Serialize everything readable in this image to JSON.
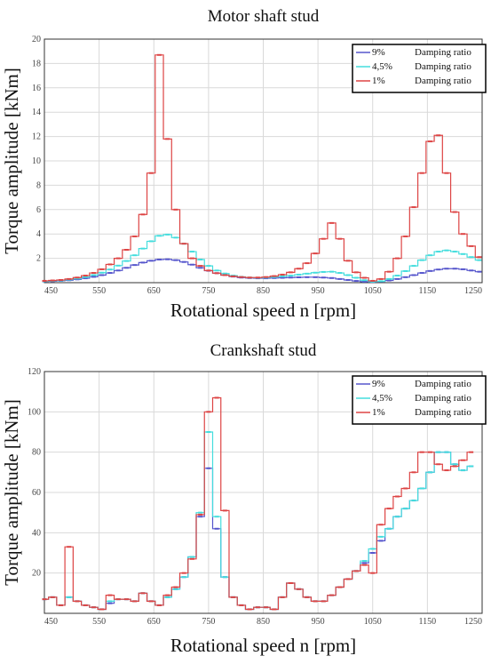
{
  "chart_data": [
    {
      "type": "line",
      "title": "Motor shaft stud",
      "xlabel": "Rotational speed n [rpm]",
      "ylabel": "Torque amplitude [kNm]",
      "xlim": [
        450,
        1250
      ],
      "ylim": [
        0,
        20
      ],
      "xticks": [
        "450",
        "550",
        "650",
        "750",
        "850",
        "950",
        "1050",
        "1150",
        "1250"
      ],
      "yticks": [
        "2",
        "4",
        "6",
        "8",
        "10",
        "12",
        "14",
        "16",
        "18",
        "20"
      ],
      "grid": true,
      "legend_position": "top-right",
      "x": [
        450,
        465,
        480,
        495,
        510,
        525,
        540,
        555,
        570,
        585,
        600,
        615,
        630,
        645,
        660,
        675,
        690,
        705,
        720,
        735,
        750,
        765,
        780,
        795,
        810,
        825,
        840,
        855,
        870,
        885,
        900,
        915,
        930,
        945,
        960,
        975,
        990,
        1005,
        1020,
        1035,
        1050,
        1065,
        1080,
        1095,
        1110,
        1125,
        1140,
        1155,
        1170,
        1185,
        1200,
        1215,
        1230,
        1245
      ],
      "series": [
        {
          "name": "9%",
          "label": "Damping ratio",
          "color": "#5555cc",
          "values": [
            0.1,
            0.12,
            0.15,
            0.2,
            0.27,
            0.36,
            0.48,
            0.62,
            0.8,
            1.0,
            1.22,
            1.45,
            1.65,
            1.8,
            1.9,
            1.92,
            1.85,
            1.7,
            1.48,
            1.22,
            0.98,
            0.78,
            0.62,
            0.5,
            0.42,
            0.38,
            0.36,
            0.36,
            0.38,
            0.4,
            0.42,
            0.44,
            0.45,
            0.45,
            0.42,
            0.38,
            0.3,
            0.22,
            0.14,
            0.08,
            0.06,
            0.1,
            0.18,
            0.3,
            0.45,
            0.62,
            0.8,
            0.96,
            1.08,
            1.15,
            1.15,
            1.1,
            1.0,
            0.9
          ]
        },
        {
          "name": "4,5%",
          "label": "Damping ratio",
          "color": "#44dddd",
          "values": [
            0.12,
            0.15,
            0.18,
            0.25,
            0.34,
            0.46,
            0.62,
            0.82,
            1.08,
            1.4,
            1.78,
            2.25,
            2.8,
            3.4,
            3.85,
            3.95,
            3.7,
            3.2,
            2.55,
            1.9,
            1.38,
            1.0,
            0.75,
            0.58,
            0.48,
            0.42,
            0.4,
            0.42,
            0.46,
            0.52,
            0.58,
            0.66,
            0.74,
            0.82,
            0.88,
            0.9,
            0.8,
            0.62,
            0.4,
            0.2,
            0.08,
            0.12,
            0.3,
            0.58,
            0.95,
            1.38,
            1.85,
            2.25,
            2.55,
            2.65,
            2.55,
            2.35,
            2.1,
            1.85
          ]
        },
        {
          "name": "1%",
          "label": "Damping ratio",
          "color": "#dd4444",
          "values": [
            0.15,
            0.18,
            0.22,
            0.3,
            0.42,
            0.58,
            0.8,
            1.1,
            1.5,
            2.0,
            2.7,
            3.8,
            5.6,
            9.0,
            18.7,
            11.8,
            6.0,
            3.2,
            2.0,
            1.38,
            1.0,
            0.78,
            0.62,
            0.52,
            0.46,
            0.42,
            0.42,
            0.46,
            0.54,
            0.66,
            0.85,
            1.15,
            1.6,
            2.4,
            3.6,
            4.9,
            3.6,
            1.8,
            0.85,
            0.4,
            0.15,
            0.3,
            0.9,
            2.0,
            3.8,
            6.2,
            9.0,
            11.6,
            12.1,
            9.0,
            5.8,
            4.0,
            3.0,
            2.1
          ]
        }
      ]
    },
    {
      "type": "line",
      "title": "Crankshaft stud",
      "xlabel": "Rotational speed n [rpm]",
      "ylabel": "Torque amplitude [kNm]",
      "xlim": [
        450,
        1250
      ],
      "ylim": [
        0,
        120
      ],
      "xticks": [
        "450",
        "550",
        "650",
        "750",
        "850",
        "950",
        "1050",
        "1150",
        "1250"
      ],
      "yticks": [
        "20",
        "40",
        "60",
        "80",
        "100",
        "120"
      ],
      "grid": true,
      "legend_position": "top-right",
      "x": [
        450,
        465,
        480,
        495,
        510,
        525,
        540,
        555,
        570,
        585,
        600,
        615,
        630,
        645,
        660,
        675,
        690,
        705,
        720,
        735,
        750,
        765,
        780,
        795,
        810,
        825,
        840,
        855,
        870,
        885,
        900,
        915,
        930,
        945,
        960,
        975,
        990,
        1005,
        1020,
        1035,
        1050,
        1065,
        1080,
        1095,
        1110,
        1125,
        1140,
        1155,
        1170,
        1185,
        1200,
        1215,
        1230
      ],
      "series": [
        {
          "name": "9%",
          "label": "Damping ratio",
          "color": "#5555cc",
          "values": [
            7,
            8,
            4,
            8,
            6,
            4,
            3,
            2,
            5,
            7,
            7,
            6,
            10,
            6,
            4,
            8,
            12,
            18,
            28,
            48,
            72,
            42,
            18,
            8,
            4,
            2,
            3,
            3,
            2,
            8,
            15,
            12,
            8,
            6,
            6,
            9,
            13,
            17,
            21,
            25,
            30,
            36,
            42,
            48,
            52,
            56,
            62,
            70,
            80,
            80,
            74,
            71,
            73
          ]
        },
        {
          "name": "4,5%",
          "label": "Damping ratio",
          "color": "#44dddd",
          "values": [
            7,
            8,
            4,
            8,
            6,
            4,
            3,
            2,
            6,
            7,
            7,
            6,
            10,
            6,
            4,
            8,
            12,
            18,
            28,
            50,
            90,
            48,
            18,
            8,
            4,
            2,
            3,
            3,
            2,
            8,
            15,
            12,
            8,
            6,
            6,
            9,
            13,
            17,
            21,
            26,
            32,
            38,
            42,
            48,
            52,
            56,
            62,
            70,
            80,
            80,
            74,
            71,
            73
          ]
        },
        {
          "name": "1%",
          "label": "Damping ratio",
          "color": "#dd4444",
          "values": [
            7,
            8,
            4,
            33,
            6,
            4,
            3,
            2,
            9,
            7,
            7,
            6,
            10,
            6,
            4,
            9,
            13,
            20,
            27,
            49,
            100,
            107,
            51,
            8,
            4,
            2,
            3,
            3,
            2,
            8,
            15,
            12,
            8,
            6,
            6,
            9,
            13,
            17,
            21,
            24,
            20,
            44,
            52,
            58,
            62,
            70,
            80,
            80,
            74,
            71,
            73,
            76,
            80
          ]
        }
      ]
    }
  ]
}
